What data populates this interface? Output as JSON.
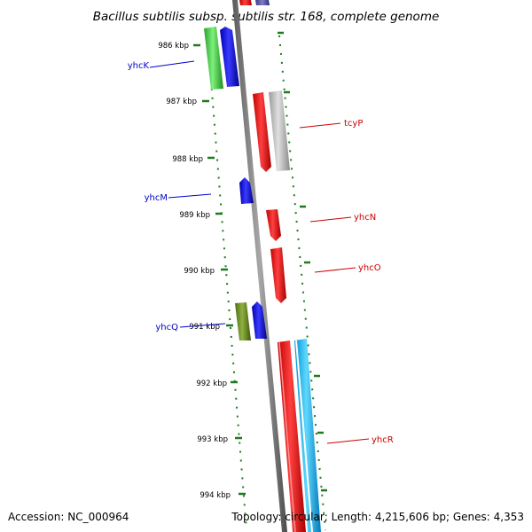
{
  "title": "Bacillus subtilis subsp. subtilis str. 168, complete genome",
  "footer": {
    "accession": "Accession: NC_000964",
    "summary": "Topology: circular; Length: 4,215,606 bp; Genes: 4,353"
  },
  "scale_labels": [
    "986 kbp",
    "987 kbp",
    "988 kbp",
    "989 kbp",
    "990 kbp",
    "991 kbp",
    "992 kbp",
    "993 kbp",
    "994 kbp"
  ],
  "colors": {
    "backbone": "#7a7a7a",
    "tick": "#1f7a1f",
    "left_label": "#0000cc",
    "right_label": "#cc0000",
    "green": "#3cc83c",
    "blue": "#0000ee",
    "olive": "#6b8e23",
    "red": "#ee0000",
    "gray": "#b8b8b8",
    "cyan": "#00b4f0"
  },
  "gene_labels": {
    "yhcK": "yhcK",
    "tcyP": "tcyP",
    "yhcM": "yhcM",
    "yhcN": "yhcN",
    "yhcO": "yhcO",
    "yhcQ": "yhcQ",
    "yhcR": "yhcR"
  }
}
